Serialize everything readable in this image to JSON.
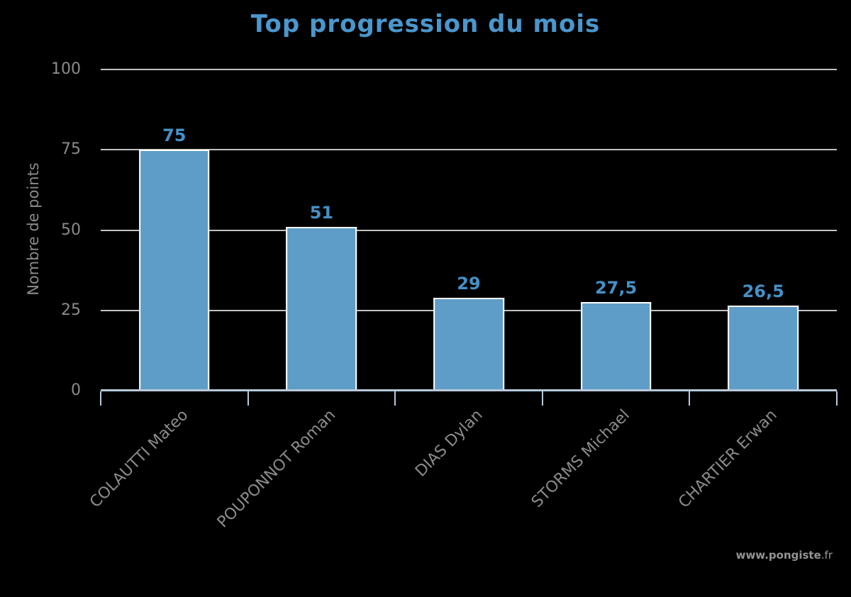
{
  "chart_data": {
    "type": "bar",
    "title": "Top progression du mois",
    "categories": [
      "COLAUTTI Mateo",
      "POUPONNOT Roman",
      "DIAS Dylan",
      "STORMS Michael",
      "CHARTIER Erwan"
    ],
    "values": [
      75,
      51,
      29,
      27.5,
      26.5
    ],
    "value_labels": [
      "75",
      "51",
      "29",
      "27,5",
      "26,5"
    ],
    "xlabel": "",
    "ylabel": "Nombre de points",
    "ylim": [
      0,
      100
    ],
    "yticks": [
      0,
      25,
      50,
      75,
      100
    ],
    "grid": true,
    "legend": false,
    "colors": {
      "background": "#000000",
      "bar_fill": "#5e9dc8",
      "bar_border": "#ffffff",
      "title": "#4a97cd",
      "value_label": "#4690c5",
      "axis_text": "#8b8b8b",
      "gridline": "#c2c2c2",
      "axis_line": "#b9c8da"
    }
  },
  "footer": {
    "watermark_main": "www.pongiste",
    "watermark_suffix": ".fr"
  }
}
